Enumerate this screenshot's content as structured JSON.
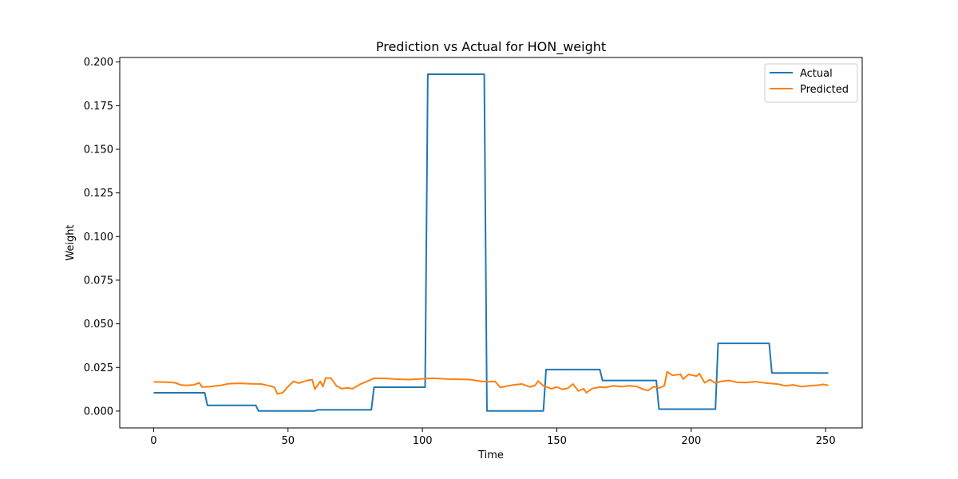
{
  "chart_data": {
    "type": "line",
    "title": "Prediction vs Actual for HON_weight",
    "xlabel": "Time",
    "ylabel": "Weight",
    "xlim": [
      -12.6,
      263.6
    ],
    "ylim": [
      -0.00965,
      0.2026
    ],
    "xticks": [
      0,
      50,
      100,
      150,
      200,
      250
    ],
    "yticks": [
      0.0,
      0.025,
      0.05,
      0.075,
      0.1,
      0.125,
      0.15,
      0.175,
      0.2
    ],
    "ytick_labels": [
      "0.000",
      "0.025",
      "0.050",
      "0.075",
      "0.100",
      "0.125",
      "0.150",
      "0.175",
      "0.200"
    ],
    "grid": false,
    "legend_position": "top-right",
    "series": [
      {
        "name": "Actual",
        "color": "#1f77b4",
        "points": [
          [
            0,
            0.0105
          ],
          [
            19,
            0.0105
          ],
          [
            20,
            0.0033
          ],
          [
            38,
            0.0033
          ],
          [
            39,
            0.0001
          ],
          [
            60,
            0.0001
          ],
          [
            61,
            0.0007
          ],
          [
            81,
            0.0007
          ],
          [
            82,
            0.0137
          ],
          [
            101,
            0.0137
          ],
          [
            102,
            0.193
          ],
          [
            123,
            0.193
          ],
          [
            124,
            0.0001
          ],
          [
            145,
            0.0001
          ],
          [
            146,
            0.0238
          ],
          [
            166,
            0.0238
          ],
          [
            167,
            0.0175
          ],
          [
            187,
            0.0175
          ],
          [
            188,
            0.0011
          ],
          [
            209,
            0.0011
          ],
          [
            210,
            0.0388
          ],
          [
            229,
            0.0388
          ],
          [
            230,
            0.0218
          ],
          [
            251,
            0.0218
          ]
        ]
      },
      {
        "name": "Predicted",
        "color": "#ff7f0e",
        "points": [
          [
            0,
            0.0167
          ],
          [
            5,
            0.0166
          ],
          [
            8,
            0.0162
          ],
          [
            10,
            0.015
          ],
          [
            12,
            0.0147
          ],
          [
            15,
            0.015
          ],
          [
            17,
            0.0162
          ],
          [
            18,
            0.0138
          ],
          [
            21,
            0.014
          ],
          [
            25,
            0.0147
          ],
          [
            28,
            0.0157
          ],
          [
            32,
            0.0159
          ],
          [
            36,
            0.0156
          ],
          [
            40,
            0.0155
          ],
          [
            43,
            0.0145
          ],
          [
            45,
            0.0136
          ],
          [
            46,
            0.0098
          ],
          [
            48,
            0.0105
          ],
          [
            50,
            0.014
          ],
          [
            52,
            0.017
          ],
          [
            54,
            0.016
          ],
          [
            57,
            0.0175
          ],
          [
            59,
            0.018
          ],
          [
            60,
            0.0125
          ],
          [
            62,
            0.017
          ],
          [
            63,
            0.014
          ],
          [
            64,
            0.019
          ],
          [
            66,
            0.0188
          ],
          [
            68,
            0.0145
          ],
          [
            70,
            0.0128
          ],
          [
            72,
            0.0133
          ],
          [
            74,
            0.0128
          ],
          [
            77,
            0.0155
          ],
          [
            80,
            0.0174
          ],
          [
            82,
            0.0188
          ],
          [
            86,
            0.0187
          ],
          [
            90,
            0.0183
          ],
          [
            95,
            0.018
          ],
          [
            100,
            0.0185
          ],
          [
            104,
            0.0188
          ],
          [
            110,
            0.0183
          ],
          [
            114,
            0.0182
          ],
          [
            118,
            0.018
          ],
          [
            122,
            0.017
          ],
          [
            125,
            0.0168
          ],
          [
            127,
            0.017
          ],
          [
            129,
            0.0135
          ],
          [
            131,
            0.0142
          ],
          [
            134,
            0.015
          ],
          [
            137,
            0.0155
          ],
          [
            140,
            0.0138
          ],
          [
            142,
            0.0148
          ],
          [
            143,
            0.0172
          ],
          [
            145,
            0.0145
          ],
          [
            148,
            0.0128
          ],
          [
            150,
            0.0138
          ],
          [
            152,
            0.0125
          ],
          [
            154,
            0.013
          ],
          [
            156,
            0.0155
          ],
          [
            158,
            0.0115
          ],
          [
            160,
            0.0128
          ],
          [
            161,
            0.0105
          ],
          [
            163,
            0.0128
          ],
          [
            166,
            0.0138
          ],
          [
            168,
            0.0135
          ],
          [
            171,
            0.0145
          ],
          [
            174,
            0.014
          ],
          [
            177,
            0.0145
          ],
          [
            180,
            0.014
          ],
          [
            182,
            0.0125
          ],
          [
            184,
            0.0118
          ],
          [
            186,
            0.014
          ],
          [
            188,
            0.0132
          ],
          [
            190,
            0.0145
          ],
          [
            191,
            0.0225
          ],
          [
            193,
            0.0205
          ],
          [
            196,
            0.021
          ],
          [
            197,
            0.0183
          ],
          [
            199,
            0.021
          ],
          [
            202,
            0.02
          ],
          [
            203,
            0.0215
          ],
          [
            205,
            0.0162
          ],
          [
            207,
            0.018
          ],
          [
            209,
            0.016
          ],
          [
            211,
            0.017
          ],
          [
            214,
            0.0175
          ],
          [
            217,
            0.0165
          ],
          [
            220,
            0.0163
          ],
          [
            224,
            0.0168
          ],
          [
            228,
            0.016
          ],
          [
            232,
            0.0155
          ],
          [
            235,
            0.0145
          ],
          [
            238,
            0.015
          ],
          [
            241,
            0.014
          ],
          [
            244,
            0.0145
          ],
          [
            247,
            0.0148
          ],
          [
            249,
            0.0153
          ],
          [
            251,
            0.0147
          ]
        ]
      }
    ]
  }
}
